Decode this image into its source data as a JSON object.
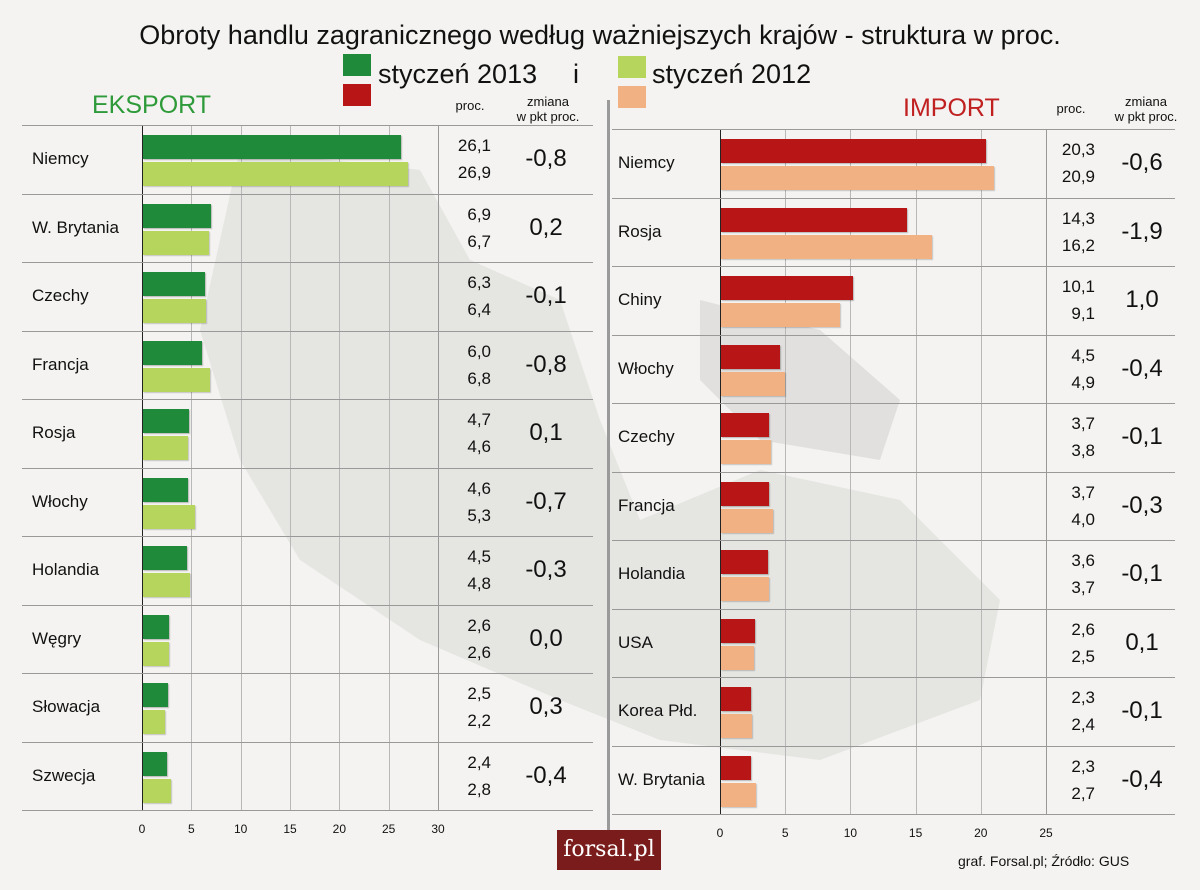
{
  "title": "Obroty handlu zagranicznego według ważniejszych krajów - struktura w proc.",
  "legend": {
    "label_2013": "styczeń 2013",
    "connector": "i",
    "label_2012": "styczeń 2012"
  },
  "colors": {
    "export_2013": "#1f8a3a",
    "export_2012": "#b5d55c",
    "import_2013": "#b81616",
    "import_2012": "#f2b183",
    "export_title": "#2e9a3a",
    "import_title": "#c02020"
  },
  "headers": {
    "proc": "proc.",
    "change_line1": "zmiana",
    "change_line2": "w pkt proc."
  },
  "footer": {
    "credit": "graf. Forsal.pl;  Źródło: GUS",
    "logo": "forsal.pl"
  },
  "chart_data": [
    {
      "type": "bar",
      "title": "EKSPORT",
      "categories": [
        "Niemcy",
        "W. Brytania",
        "Czechy",
        "Francja",
        "Rosja",
        "Włochy",
        "Holandia",
        "Węgry",
        "Słowacja",
        "Szwecja"
      ],
      "series": [
        {
          "name": "styczeń 2013",
          "values": [
            26.1,
            6.9,
            6.3,
            6.0,
            4.7,
            4.6,
            4.5,
            2.6,
            2.5,
            2.4
          ]
        },
        {
          "name": "styczeń 2012",
          "values": [
            26.9,
            6.7,
            6.4,
            6.8,
            4.6,
            5.3,
            4.8,
            2.6,
            2.2,
            2.8
          ]
        }
      ],
      "value_labels_2013": [
        "26,1",
        "6,9",
        "6,3",
        "6,0",
        "4,7",
        "4,6",
        "4,5",
        "2,6",
        "2,5",
        "2,4"
      ],
      "value_labels_2012": [
        "26,9",
        "6,7",
        "6,4",
        "6,8",
        "4,6",
        "5,3",
        "4,8",
        "2,6",
        "2,2",
        "2,8"
      ],
      "change_labels": [
        "-0,8",
        "0,2",
        "-0,1",
        "-0,8",
        "0,1",
        "-0,7",
        "-0,3",
        "0,0",
        "0,3",
        "-0,4"
      ],
      "xlim": [
        0,
        30
      ],
      "ticks": [
        "0",
        "5",
        "10",
        "15",
        "20",
        "25",
        "30"
      ],
      "grid": true
    },
    {
      "type": "bar",
      "title": "IMPORT",
      "categories": [
        "Niemcy",
        "Rosja",
        "Chiny",
        "Włochy",
        "Czechy",
        "Francja",
        "Holandia",
        "USA",
        "Korea Płd.",
        "W. Brytania"
      ],
      "series": [
        {
          "name": "styczeń 2013",
          "values": [
            20.3,
            14.3,
            10.1,
            4.5,
            3.7,
            3.7,
            3.6,
            2.6,
            2.3,
            2.3
          ]
        },
        {
          "name": "styczeń 2012",
          "values": [
            20.9,
            16.2,
            9.1,
            4.9,
            3.8,
            4.0,
            3.7,
            2.5,
            2.4,
            2.7
          ]
        }
      ],
      "value_labels_2013": [
        "20,3",
        "14,3",
        "10,1",
        "4,5",
        "3,7",
        "3,7",
        "3,6",
        "2,6",
        "2,3",
        "2,3"
      ],
      "value_labels_2012": [
        "20,9",
        "16,2",
        "9,1",
        "4,9",
        "3,8",
        "4,0",
        "3,7",
        "2,5",
        "2,4",
        "2,7"
      ],
      "change_labels": [
        "-0,6",
        "-1,9",
        "1,0",
        "-0,4",
        "-0,1",
        "-0,3",
        "-0,1",
        "0,1",
        "-0,1",
        "-0,4"
      ],
      "xlim": [
        0,
        25
      ],
      "ticks": [
        "0",
        "5",
        "10",
        "15",
        "20",
        "25"
      ],
      "grid": true
    }
  ]
}
